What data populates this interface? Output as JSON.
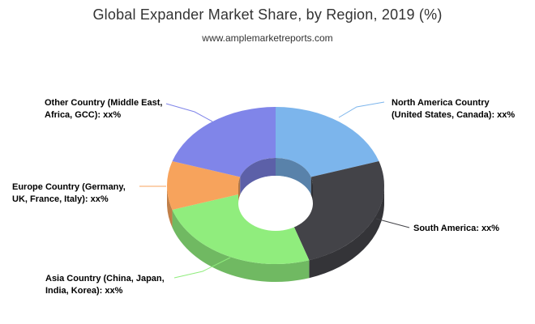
{
  "chart_data": {
    "type": "pie",
    "variant": "3d-donut",
    "title": "Global Expander Market Share, by Region, 2019 (%)",
    "subtitle": "www.amplemarketreports.com",
    "legend": "none",
    "slices": [
      {
        "name": "North America Country (United States, Canada):",
        "label": "North America Country (United States, Canada): xx%",
        "value": 20,
        "color": "#7cb5ec"
      },
      {
        "name": "South America:",
        "label": "South America: xx%",
        "value": 25,
        "color": "#434348"
      },
      {
        "name": "Asia Country (China, Japan, India, Korea):",
        "label": "Asia Country (China, Japan, India, Korea): xx%",
        "value": 25,
        "color": "#90ed7d"
      },
      {
        "name": "Europe Country (Germany, UK, France, Italy):",
        "label": "Europe Country (Germany, UK, France, Italy): xx%",
        "value": 10,
        "color": "#f7a35c"
      },
      {
        "name": "Other Country (Middle East, Africa, GCC):",
        "label": "Other Country (Middle East, Africa, GCC): xx%",
        "value": 20,
        "color": "#8085e9"
      }
    ]
  }
}
